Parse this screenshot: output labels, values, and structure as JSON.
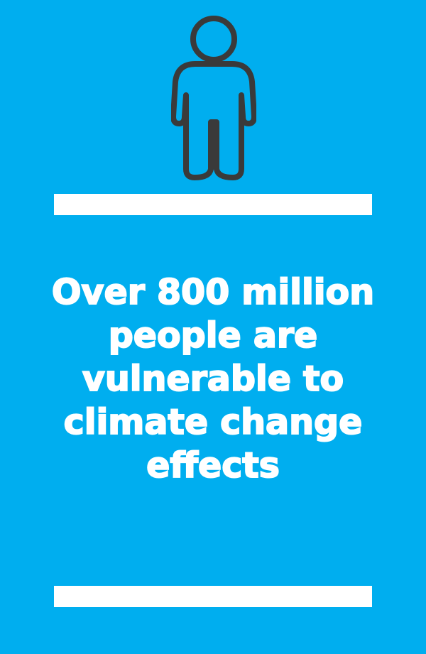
{
  "colors": {
    "background": "#00AEEF",
    "icon_stroke": "#3A3A3A",
    "bar": "#FFFFFF",
    "text": "#FFFFFF"
  },
  "icon": "person-icon",
  "headline": {
    "lines": [
      "Over 800 million",
      "people are",
      "vulnerable to",
      "climate change",
      "effects"
    ]
  }
}
